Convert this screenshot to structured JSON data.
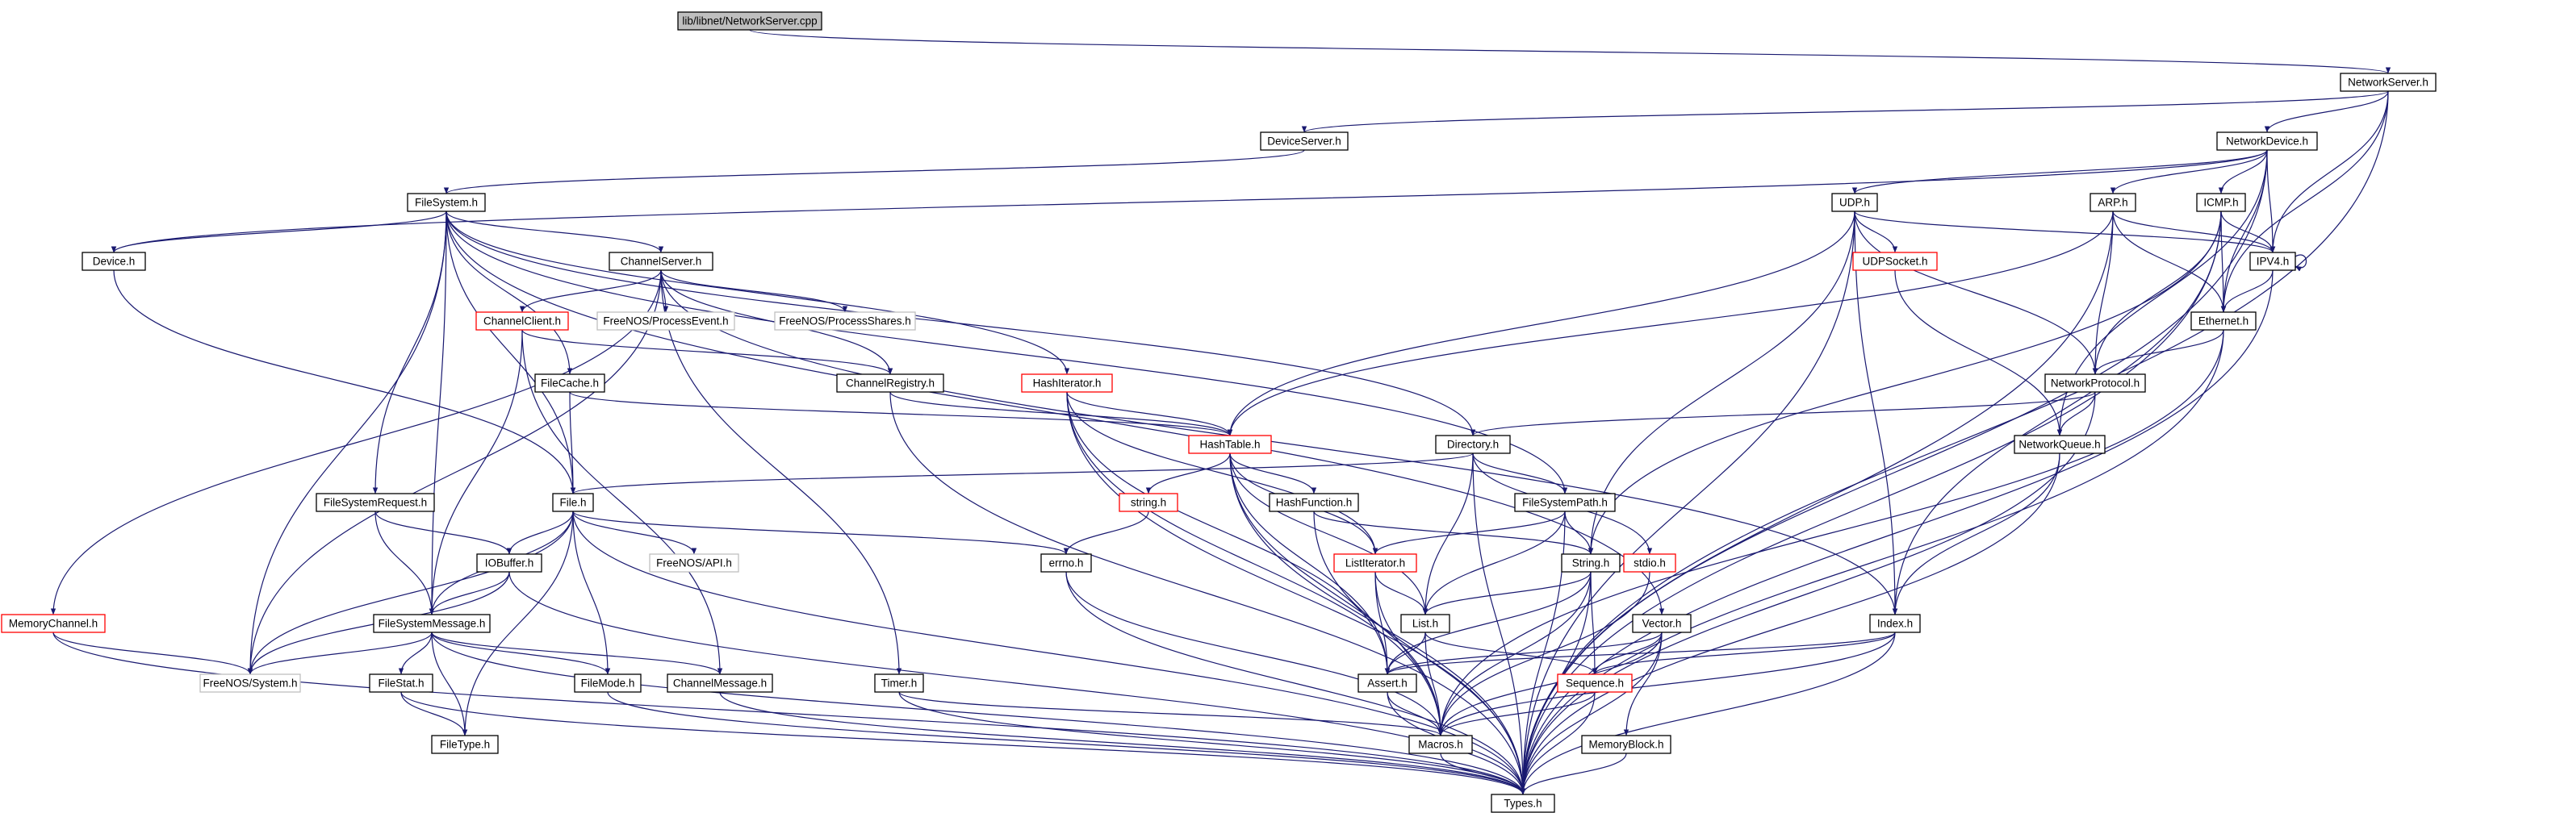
{
  "nodes": {
    "root": {
      "label": "lib/libnet/NetworkServer.cpp",
      "style": "root"
    },
    "NetworkServer": {
      "label": "NetworkServer.h",
      "style": "normal"
    },
    "DeviceServer": {
      "label": "DeviceServer.h",
      "style": "normal"
    },
    "NetworkDevice": {
      "label": "NetworkDevice.h",
      "style": "normal"
    },
    "FileSystem": {
      "label": "FileSystem.h",
      "style": "normal"
    },
    "UDP": {
      "label": "UDP.h",
      "style": "normal"
    },
    "ARP": {
      "label": "ARP.h",
      "style": "normal"
    },
    "ICMP": {
      "label": "ICMP.h",
      "style": "normal"
    },
    "Device": {
      "label": "Device.h",
      "style": "normal"
    },
    "ChannelServer": {
      "label": "ChannelServer.h",
      "style": "normal"
    },
    "UDPSocket": {
      "label": "UDPSocket.h",
      "style": "red"
    },
    "IPV4": {
      "label": "IPV4.h",
      "style": "normal"
    },
    "ChannelClient": {
      "label": "ChannelClient.h",
      "style": "red"
    },
    "ProcessEvent": {
      "label": "FreeNOS/ProcessEvent.h",
      "style": "gray"
    },
    "ProcessShares": {
      "label": "FreeNOS/ProcessShares.h",
      "style": "gray"
    },
    "Ethernet": {
      "label": "Ethernet.h",
      "style": "normal"
    },
    "FileCache": {
      "label": "FileCache.h",
      "style": "normal"
    },
    "ChannelRegistry": {
      "label": "ChannelRegistry.h",
      "style": "normal"
    },
    "HashIterator": {
      "label": "HashIterator.h",
      "style": "red"
    },
    "NetworkProtocol": {
      "label": "NetworkProtocol.h",
      "style": "normal"
    },
    "HashTable": {
      "label": "HashTable.h",
      "style": "red"
    },
    "Directory": {
      "label": "Directory.h",
      "style": "normal"
    },
    "NetworkQueue": {
      "label": "NetworkQueue.h",
      "style": "normal"
    },
    "FileSystemRequest": {
      "label": "FileSystemRequest.h",
      "style": "normal"
    },
    "File": {
      "label": "File.h",
      "style": "normal"
    },
    "string": {
      "label": "string.h",
      "style": "red"
    },
    "HashFunction": {
      "label": "HashFunction.h",
      "style": "normal"
    },
    "FileSystemPath": {
      "label": "FileSystemPath.h",
      "style": "normal"
    },
    "IOBuffer": {
      "label": "IOBuffer.h",
      "style": "normal"
    },
    "API": {
      "label": "FreeNOS/API.h",
      "style": "gray"
    },
    "errno": {
      "label": "errno.h",
      "style": "normal"
    },
    "ListIterator": {
      "label": "ListIterator.h",
      "style": "red"
    },
    "String": {
      "label": "String.h",
      "style": "normal"
    },
    "stdio": {
      "label": "stdio.h",
      "style": "red"
    },
    "MemoryChannel": {
      "label": "MemoryChannel.h",
      "style": "red"
    },
    "FileSystemMessage": {
      "label": "FileSystemMessage.h",
      "style": "normal"
    },
    "List": {
      "label": "List.h",
      "style": "normal"
    },
    "Vector": {
      "label": "Vector.h",
      "style": "normal"
    },
    "Index": {
      "label": "Index.h",
      "style": "normal"
    },
    "System": {
      "label": "FreeNOS/System.h",
      "style": "gray"
    },
    "FileStat": {
      "label": "FileStat.h",
      "style": "normal"
    },
    "FileMode": {
      "label": "FileMode.h",
      "style": "normal"
    },
    "ChannelMessage": {
      "label": "ChannelMessage.h",
      "style": "normal"
    },
    "Timer": {
      "label": "Timer.h",
      "style": "normal"
    },
    "Assert": {
      "label": "Assert.h",
      "style": "normal"
    },
    "Sequence": {
      "label": "Sequence.h",
      "style": "red"
    },
    "FileType": {
      "label": "FileType.h",
      "style": "normal"
    },
    "Macros": {
      "label": "Macros.h",
      "style": "normal"
    },
    "MemoryBlock": {
      "label": "MemoryBlock.h",
      "style": "normal"
    },
    "Types": {
      "label": "Types.h",
      "style": "normal"
    }
  },
  "edges": [
    [
      "root",
      "NetworkServer"
    ],
    [
      "NetworkServer",
      "DeviceServer"
    ],
    [
      "NetworkServer",
      "NetworkDevice"
    ],
    [
      "NetworkServer",
      "IPV4"
    ],
    [
      "NetworkServer",
      "Ethernet"
    ],
    [
      "NetworkServer",
      "Types"
    ],
    [
      "DeviceServer",
      "FileSystem"
    ],
    [
      "NetworkDevice",
      "Device"
    ],
    [
      "NetworkDevice",
      "UDP"
    ],
    [
      "NetworkDevice",
      "ARP"
    ],
    [
      "NetworkDevice",
      "ICMP"
    ],
    [
      "NetworkDevice",
      "IPV4"
    ],
    [
      "NetworkDevice",
      "Ethernet"
    ],
    [
      "NetworkDevice",
      "NetworkQueue"
    ],
    [
      "NetworkDevice",
      "Types"
    ],
    [
      "FileSystem",
      "Device"
    ],
    [
      "FileSystem",
      "ChannelServer"
    ],
    [
      "FileSystem",
      "FileCache"
    ],
    [
      "FileSystem",
      "HashIterator"
    ],
    [
      "FileSystem",
      "Directory"
    ],
    [
      "FileSystem",
      "FileSystemRequest"
    ],
    [
      "FileSystem",
      "File"
    ],
    [
      "FileSystem",
      "FileSystemPath"
    ],
    [
      "FileSystem",
      "FileSystemMessage"
    ],
    [
      "FileSystem",
      "System"
    ],
    [
      "FileSystem",
      "Vector"
    ],
    [
      "Device",
      "File"
    ],
    [
      "ChannelServer",
      "ChannelClient"
    ],
    [
      "ChannelServer",
      "ProcessEvent"
    ],
    [
      "ChannelServer",
      "ProcessShares"
    ],
    [
      "ChannelServer",
      "ChannelRegistry"
    ],
    [
      "ChannelServer",
      "MemoryChannel"
    ],
    [
      "ChannelServer",
      "System"
    ],
    [
      "ChannelServer",
      "Timer"
    ],
    [
      "ChannelServer",
      "Index"
    ],
    [
      "ChannelClient",
      "ChannelRegistry"
    ],
    [
      "ChannelClient",
      "FileSystemMessage"
    ],
    [
      "ChannelClient",
      "ChannelMessage"
    ],
    [
      "FileCache",
      "HashTable"
    ],
    [
      "FileCache",
      "File"
    ],
    [
      "ChannelRegistry",
      "HashTable"
    ],
    [
      "ChannelRegistry",
      "Types"
    ],
    [
      "HashIterator",
      "HashTable"
    ],
    [
      "HashIterator",
      "ListIterator"
    ],
    [
      "HashIterator",
      "Assert"
    ],
    [
      "HashIterator",
      "Macros"
    ],
    [
      "HashIterator",
      "Types"
    ],
    [
      "UDP",
      "IPV4"
    ],
    [
      "UDP",
      "UDPSocket"
    ],
    [
      "UDP",
      "NetworkProtocol"
    ],
    [
      "UDP",
      "HashTable"
    ],
    [
      "UDP",
      "String"
    ],
    [
      "UDP",
      "Index"
    ],
    [
      "UDP",
      "Types"
    ],
    [
      "ARP",
      "IPV4"
    ],
    [
      "ARP",
      "Ethernet"
    ],
    [
      "ARP",
      "NetworkProtocol"
    ],
    [
      "ARP",
      "HashTable"
    ],
    [
      "ARP",
      "Types"
    ],
    [
      "ICMP",
      "IPV4"
    ],
    [
      "ICMP",
      "Ethernet"
    ],
    [
      "ICMP",
      "NetworkProtocol"
    ],
    [
      "ICMP",
      "String"
    ],
    [
      "ICMP",
      "Index"
    ],
    [
      "ICMP",
      "Types"
    ],
    [
      "IPV4",
      "IPV4"
    ],
    [
      "IPV4",
      "Ethernet"
    ],
    [
      "IPV4",
      "Types"
    ],
    [
      "UDPSocket",
      "NetworkQueue"
    ],
    [
      "Ethernet",
      "NetworkProtocol"
    ],
    [
      "Ethernet",
      "Macros"
    ],
    [
      "Ethernet",
      "Types"
    ],
    [
      "NetworkProtocol",
      "Directory"
    ],
    [
      "NetworkProtocol",
      "NetworkQueue"
    ],
    [
      "NetworkProtocol",
      "Types"
    ],
    [
      "NetworkQueue",
      "Index"
    ],
    [
      "NetworkQueue",
      "Types"
    ],
    [
      "Directory",
      "File"
    ],
    [
      "Directory",
      "FileSystemPath"
    ],
    [
      "Directory",
      "List"
    ],
    [
      "Directory",
      "stdio"
    ],
    [
      "Directory",
      "Types"
    ],
    [
      "HashTable",
      "string"
    ],
    [
      "HashTable",
      "HashFunction"
    ],
    [
      "HashTable",
      "ListIterator"
    ],
    [
      "HashTable",
      "List"
    ],
    [
      "HashTable",
      "Assert"
    ],
    [
      "HashTable",
      "Macros"
    ],
    [
      "HashTable",
      "Types"
    ],
    [
      "FileSystemRequest",
      "IOBuffer"
    ],
    [
      "FileSystemRequest",
      "FileSystemMessage"
    ],
    [
      "File",
      "IOBuffer"
    ],
    [
      "File",
      "API"
    ],
    [
      "File",
      "errno"
    ],
    [
      "File",
      "FileSystemMessage"
    ],
    [
      "File",
      "System"
    ],
    [
      "File",
      "FileMode"
    ],
    [
      "File",
      "FileType"
    ],
    [
      "File",
      "Types"
    ],
    [
      "string",
      "errno"
    ],
    [
      "HashFunction",
      "String"
    ],
    [
      "HashFunction",
      "Types"
    ],
    [
      "FileSystemPath",
      "ListIterator"
    ],
    [
      "FileSystemPath",
      "String"
    ],
    [
      "FileSystemPath",
      "List"
    ],
    [
      "FileSystemPath",
      "Types"
    ],
    [
      "IOBuffer",
      "FileSystemMessage"
    ],
    [
      "IOBuffer",
      "System"
    ],
    [
      "IOBuffer",
      "Types"
    ],
    [
      "errno",
      "Macros"
    ],
    [
      "errno",
      "Types"
    ],
    [
      "ListIterator",
      "List"
    ],
    [
      "ListIterator",
      "Assert"
    ],
    [
      "ListIterator",
      "Macros"
    ],
    [
      "String",
      "List"
    ],
    [
      "String",
      "Assert"
    ],
    [
      "String",
      "Sequence"
    ],
    [
      "String",
      "Macros"
    ],
    [
      "String",
      "Types"
    ],
    [
      "stdio",
      "Macros"
    ],
    [
      "MemoryChannel",
      "System"
    ],
    [
      "MemoryChannel",
      "Types"
    ],
    [
      "FileSystemMessage",
      "System"
    ],
    [
      "FileSystemMessage",
      "FileStat"
    ],
    [
      "FileSystemMessage",
      "FileMode"
    ],
    [
      "FileSystemMessage",
      "ChannelMessage"
    ],
    [
      "FileSystemMessage",
      "FileType"
    ],
    [
      "FileSystemMessage",
      "Types"
    ],
    [
      "List",
      "Assert"
    ],
    [
      "List",
      "Sequence"
    ],
    [
      "List",
      "Macros"
    ],
    [
      "Vector",
      "Assert"
    ],
    [
      "Vector",
      "Sequence"
    ],
    [
      "Vector",
      "Macros"
    ],
    [
      "Vector",
      "MemoryBlock"
    ],
    [
      "Vector",
      "Types"
    ],
    [
      "Index",
      "Assert"
    ],
    [
      "Index",
      "Sequence"
    ],
    [
      "Index",
      "Macros"
    ],
    [
      "Index",
      "Types"
    ],
    [
      "FileStat",
      "FileType"
    ],
    [
      "FileStat",
      "Types"
    ],
    [
      "FileMode",
      "Types"
    ],
    [
      "ChannelMessage",
      "Types"
    ],
    [
      "Timer",
      "Macros"
    ],
    [
      "Timer",
      "Types"
    ],
    [
      "Assert",
      "Macros"
    ],
    [
      "Assert",
      "Types"
    ],
    [
      "Sequence",
      "Macros"
    ],
    [
      "Sequence",
      "Types"
    ],
    [
      "Macros",
      "Types"
    ],
    [
      "MemoryBlock",
      "Types"
    ]
  ]
}
